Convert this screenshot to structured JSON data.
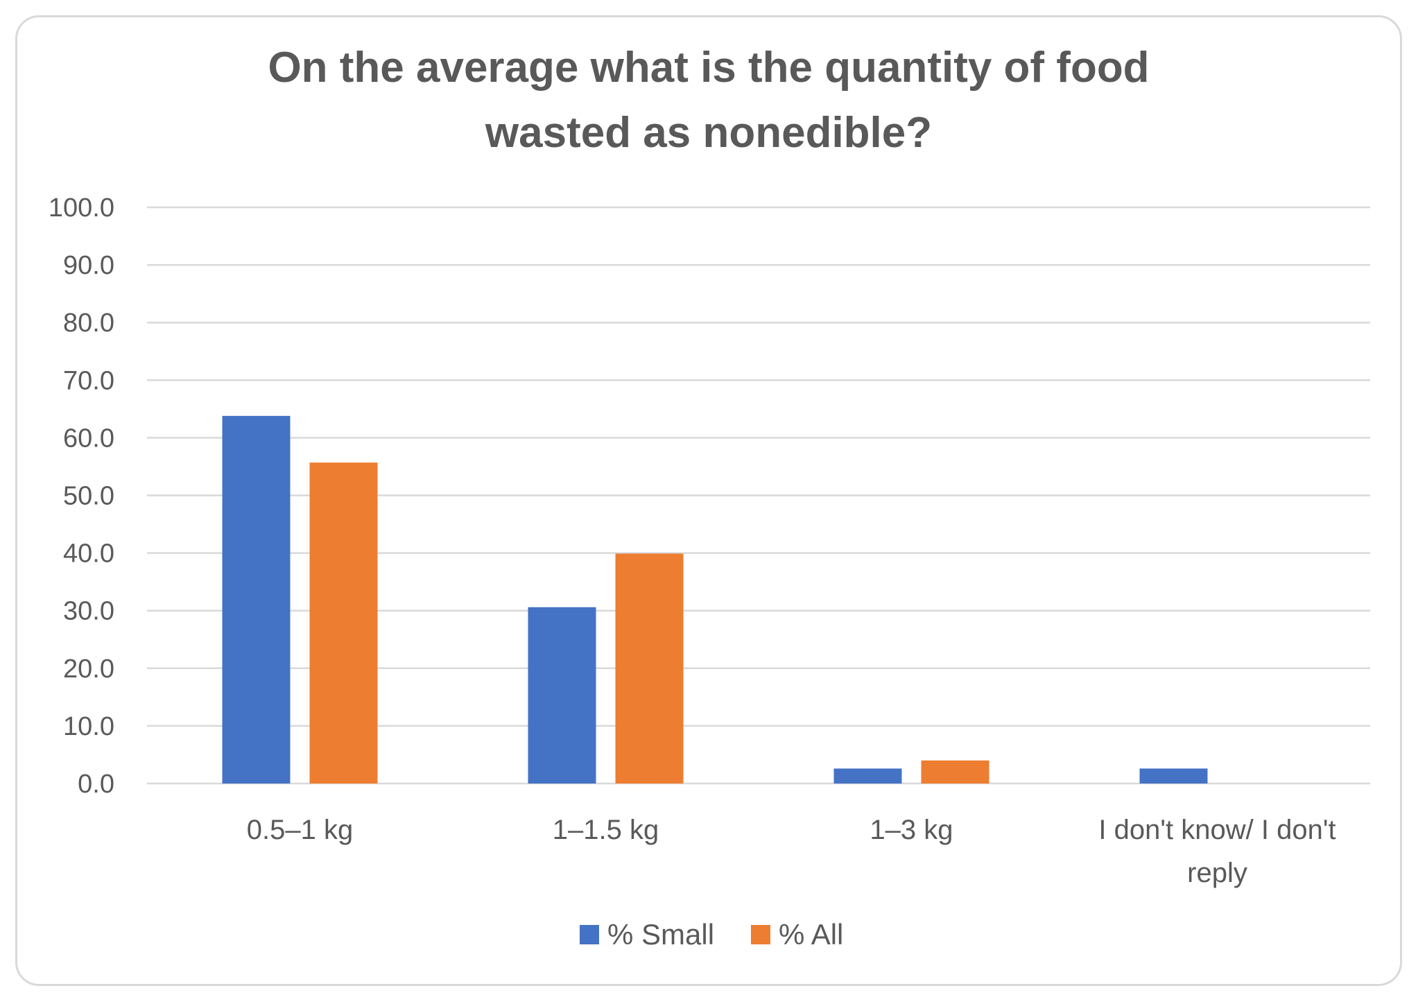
{
  "chart_data": {
    "type": "bar",
    "title_lines": [
      "On the average what is the quantity of food",
      "wasted as nonedible?"
    ],
    "categories": [
      [
        "0.5–1 kg"
      ],
      [
        "1–1.5 kg"
      ],
      [
        "1–3 kg"
      ],
      [
        "I don't know/ I don't",
        "reply"
      ]
    ],
    "series": [
      {
        "name": "% Small",
        "color": "#4472C4",
        "values": [
          63.8,
          30.6,
          2.6,
          2.6
        ]
      },
      {
        "name": "% All",
        "color": "#ED7D31",
        "values": [
          55.7,
          39.9,
          4.0,
          0.0
        ]
      }
    ],
    "ylim": [
      0,
      100
    ],
    "yticks": [
      "0.0",
      "10.0",
      "20.0",
      "30.0",
      "40.0",
      "50.0",
      "60.0",
      "70.0",
      "80.0",
      "90.0",
      "100.0"
    ],
    "xlabel": "",
    "ylabel": "",
    "grid": true,
    "legend_position": "bottom-center"
  }
}
